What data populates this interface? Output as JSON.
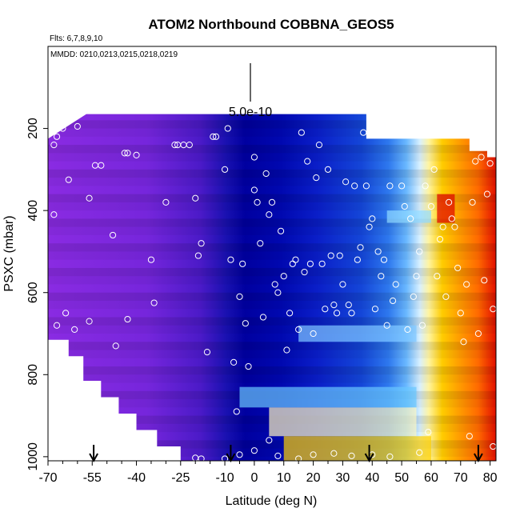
{
  "chart_data": {
    "type": "heatmap",
    "title": "ATOM2 Northbound COBBNA_GEOS5",
    "flights_note": "Flts: 6,7,8,9,10",
    "dates_note": "MMDD: 0210,0213,0215,0218,0219",
    "xlabel": "Latitude (deg N)",
    "ylabel": "PSXC (mbar)",
    "xlim": [
      -70,
      82
    ],
    "ylim": [
      1010,
      0
    ],
    "x_ticks": [
      -70,
      -55,
      -40,
      -25,
      -10,
      0,
      10,
      20,
      30,
      40,
      50,
      60,
      70,
      80
    ],
    "y_ticks": [
      200,
      400,
      600,
      800,
      1000
    ],
    "scale_label": "5.0e-10",
    "arrow_latitudes": [
      -54.5,
      -8,
      39,
      76
    ],
    "palette": [
      "#8a2be2",
      "#5a20cf",
      "#1b14b8",
      "#0000a8",
      "#0a28d0",
      "#3a78e8",
      "#9cd0ff",
      "#fffbe0",
      "#ffe84a",
      "#ffb000",
      "#ff7400",
      "#e60000"
    ],
    "regions": [
      {
        "from": -70,
        "to": -30,
        "color_start": "#8a2be2",
        "color_end": "#6a22d6"
      },
      {
        "from": -30,
        "to": -12,
        "color_start": "#5a20cf",
        "color_end": "#1b14b8"
      },
      {
        "from": -12,
        "to": 5,
        "color_start": "#0000a8",
        "color_end": "#0a10b8"
      },
      {
        "from": 5,
        "to": 40,
        "color_start": "#0a28d0",
        "color_end": "#3a78e8"
      },
      {
        "from": 40,
        "to": 60,
        "color_start": "#9cd0ff",
        "color_end": "#fffbe0"
      },
      {
        "from": 60,
        "to": 82,
        "color_start": "#ffb000",
        "color_end": "#e60000"
      }
    ],
    "upper_edge": [
      {
        "lat": -70,
        "top": 225
      },
      {
        "lat": -57,
        "top": 165
      },
      {
        "lat": 38,
        "top": 165
      },
      {
        "lat": 38,
        "top": 225
      },
      {
        "lat": 73,
        "top": 225
      },
      {
        "lat": 73,
        "top": 255
      },
      {
        "lat": 79,
        "top": 255
      },
      {
        "lat": 79,
        "top": 270
      },
      {
        "lat": 82,
        "top": 270
      }
    ],
    "lower_left_edge": [
      {
        "lat": -70,
        "bottom": 715
      },
      {
        "lat": -63,
        "bottom": 715
      },
      {
        "lat": -63,
        "bottom": 755
      },
      {
        "lat": -58,
        "bottom": 755
      },
      {
        "lat": -58,
        "bottom": 815
      },
      {
        "lat": -52,
        "bottom": 815
      },
      {
        "lat": -52,
        "bottom": 855
      },
      {
        "lat": -46,
        "bottom": 855
      },
      {
        "lat": -46,
        "bottom": 895
      },
      {
        "lat": -40,
        "bottom": 895
      },
      {
        "lat": -40,
        "bottom": 935
      },
      {
        "lat": -33,
        "bottom": 935
      },
      {
        "lat": -33,
        "bottom": 975
      },
      {
        "lat": -25,
        "bottom": 975
      },
      {
        "lat": -25,
        "bottom": 1010
      }
    ],
    "bands": [
      {
        "p_top": 830,
        "p_bottom": 880,
        "lat_from": -5,
        "lat_to": 55,
        "color": "#6ac8ff"
      },
      {
        "p_top": 880,
        "p_bottom": 950,
        "lat_from": 5,
        "lat_to": 55,
        "color": "#fff7c0"
      },
      {
        "p_top": 950,
        "p_bottom": 1010,
        "lat_from": 10,
        "lat_to": 60,
        "color": "#ffd000"
      },
      {
        "p_top": 680,
        "p_bottom": 720,
        "lat_from": 15,
        "lat_to": 55,
        "color": "#80c8ff"
      },
      {
        "p_top": 400,
        "p_bottom": 430,
        "lat_from": 45,
        "lat_to": 60,
        "color": "#8fd8ff"
      },
      {
        "p_top": 360,
        "p_bottom": 430,
        "lat_from": 62,
        "lat_to": 68,
        "color": "#e00000"
      }
    ],
    "points": [
      [
        -68,
        240
      ],
      [
        -67,
        220
      ],
      [
        -65,
        200
      ],
      [
        -60,
        195
      ],
      [
        -63,
        325
      ],
      [
        -68,
        410
      ],
      [
        -64,
        650
      ],
      [
        -61,
        690
      ],
      [
        -67,
        680
      ],
      [
        -56,
        370
      ],
      [
        -56,
        670
      ],
      [
        -54,
        290
      ],
      [
        -52,
        290
      ],
      [
        -48,
        460
      ],
      [
        -47,
        730
      ],
      [
        -44,
        260
      ],
      [
        -43,
        260
      ],
      [
        -40,
        265
      ],
      [
        -43,
        665
      ],
      [
        -35,
        520
      ],
      [
        -34,
        625
      ],
      [
        -30,
        380
      ],
      [
        -27,
        240
      ],
      [
        -26,
        240
      ],
      [
        -24,
        240
      ],
      [
        -22,
        240
      ],
      [
        -20,
        370
      ],
      [
        -19,
        510
      ],
      [
        -18,
        480
      ],
      [
        -16,
        745
      ],
      [
        -14,
        220
      ],
      [
        -13,
        220
      ],
      [
        -10,
        300
      ],
      [
        -9,
        200
      ],
      [
        -8,
        520
      ],
      [
        -7,
        770
      ],
      [
        -6,
        890
      ],
      [
        -5,
        610
      ],
      [
        -4,
        530
      ],
      [
        -3,
        675
      ],
      [
        -2,
        780
      ],
      [
        0,
        270
      ],
      [
        0,
        350
      ],
      [
        1,
        380
      ],
      [
        2,
        480
      ],
      [
        3,
        660
      ],
      [
        4,
        310
      ],
      [
        5,
        410
      ],
      [
        6,
        380
      ],
      [
        7,
        580
      ],
      [
        8,
        600
      ],
      [
        9,
        450
      ],
      [
        10,
        560
      ],
      [
        11,
        740
      ],
      [
        12,
        650
      ],
      [
        13,
        530
      ],
      [
        14,
        520
      ],
      [
        15,
        690
      ],
      [
        16,
        210
      ],
      [
        17,
        550
      ],
      [
        18,
        280
      ],
      [
        19,
        530
      ],
      [
        20,
        700
      ],
      [
        21,
        320
      ],
      [
        22,
        240
      ],
      [
        23,
        530
      ],
      [
        24,
        640
      ],
      [
        25,
        300
      ],
      [
        26,
        510
      ],
      [
        27,
        630
      ],
      [
        28,
        650
      ],
      [
        29,
        510
      ],
      [
        30,
        580
      ],
      [
        31,
        330
      ],
      [
        32,
        630
      ],
      [
        33,
        650
      ],
      [
        34,
        340
      ],
      [
        35,
        520
      ],
      [
        36,
        490
      ],
      [
        37,
        210
      ],
      [
        38,
        340
      ],
      [
        39,
        440
      ],
      [
        40,
        420
      ],
      [
        41,
        640
      ],
      [
        42,
        500
      ],
      [
        43,
        560
      ],
      [
        44,
        520
      ],
      [
        45,
        680
      ],
      [
        46,
        340
      ],
      [
        47,
        620
      ],
      [
        48,
        580
      ],
      [
        50,
        340
      ],
      [
        51,
        390
      ],
      [
        52,
        690
      ],
      [
        53,
        420
      ],
      [
        54,
        610
      ],
      [
        55,
        560
      ],
      [
        56,
        500
      ],
      [
        57,
        680
      ],
      [
        58,
        340
      ],
      [
        59,
        940
      ],
      [
        60,
        390
      ],
      [
        61,
        300
      ],
      [
        62,
        560
      ],
      [
        63,
        470
      ],
      [
        64,
        440
      ],
      [
        65,
        610
      ],
      [
        66,
        380
      ],
      [
        67,
        420
      ],
      [
        68,
        440
      ],
      [
        69,
        540
      ],
      [
        70,
        650
      ],
      [
        71,
        720
      ],
      [
        72,
        580
      ],
      [
        73,
        950
      ],
      [
        74,
        380
      ],
      [
        75,
        280
      ],
      [
        76,
        700
      ],
      [
        77,
        270
      ],
      [
        78,
        570
      ],
      [
        79,
        360
      ],
      [
        80,
        285
      ],
      [
        81,
        640
      ],
      [
        81,
        975
      ],
      [
        56,
        990
      ],
      [
        46,
        1000
      ],
      [
        40,
        995
      ],
      [
        33,
        998
      ],
      [
        27,
        992
      ],
      [
        20,
        995
      ],
      [
        15,
        1005
      ],
      [
        8,
        998
      ],
      [
        5,
        960
      ],
      [
        0,
        985
      ],
      [
        -5,
        995
      ],
      [
        -10,
        1005
      ],
      [
        -20,
        1003
      ],
      [
        -18,
        1005
      ]
    ]
  }
}
